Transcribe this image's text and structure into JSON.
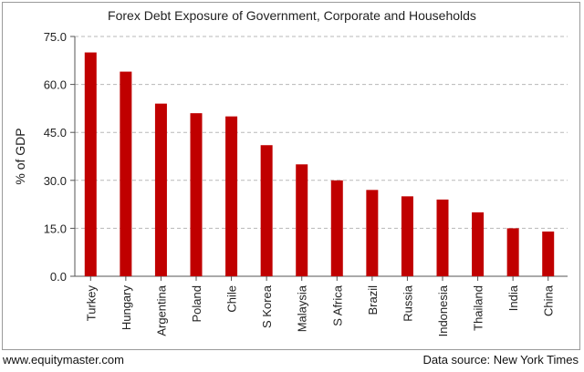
{
  "chart_data": {
    "type": "bar",
    "title": "Forex Debt Exposure of Government, Corporate and Households",
    "xlabel": "",
    "ylabel": "% of GDP",
    "ylim": [
      0,
      75
    ],
    "yticks": [
      "0.0",
      "15.0",
      "30.0",
      "45.0",
      "60.0",
      "75.0"
    ],
    "grid": true,
    "categories": [
      "Turkey",
      "Hungary",
      "Argentina",
      "Poland",
      "Chile",
      "S Korea",
      "Malaysia",
      "S Africa",
      "Brazil",
      "Russia",
      "Indonesia",
      "Thailand",
      "India",
      "China"
    ],
    "values": [
      70,
      64,
      54,
      51,
      50,
      41,
      35,
      30,
      27,
      25,
      24,
      20,
      15,
      14
    ],
    "bar_color": "#c00000",
    "grid_color": "#b8b8b8"
  },
  "footer": {
    "source_site": "www.equitymaster.com",
    "data_source": "Data source: New York Times"
  }
}
